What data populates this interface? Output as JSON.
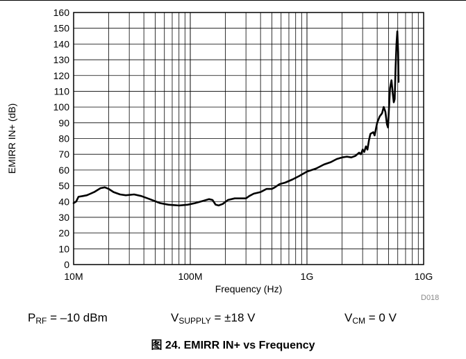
{
  "chart_data": {
    "type": "line",
    "title": "",
    "xlabel": "Frequency (Hz)",
    "ylabel": "EMIRR IN+ (dB)",
    "xscale": "log",
    "xlim": [
      10000000,
      10000000000
    ],
    "ylim": [
      0,
      160
    ],
    "x_ticks": [
      {
        "value": 10000000,
        "label": "10M"
      },
      {
        "value": 100000000,
        "label": "100M"
      },
      {
        "value": 1000000000,
        "label": "1G"
      },
      {
        "value": 10000000000,
        "label": "10G"
      }
    ],
    "y_ticks": [
      0,
      10,
      20,
      30,
      40,
      50,
      60,
      70,
      80,
      90,
      100,
      110,
      120,
      130,
      140,
      150,
      160
    ],
    "grid": true,
    "legend": "none",
    "line_color": "#000000",
    "series": [
      {
        "name": "",
        "points": [
          [
            10000000,
            39
          ],
          [
            10500000,
            40
          ],
          [
            11000000,
            43
          ],
          [
            12000000,
            43.5
          ],
          [
            13000000,
            44
          ],
          [
            15000000,
            46
          ],
          [
            17000000,
            48.5
          ],
          [
            18500000,
            49
          ],
          [
            20000000,
            48
          ],
          [
            22000000,
            46
          ],
          [
            25000000,
            44.5
          ],
          [
            28000000,
            44
          ],
          [
            33000000,
            44.5
          ],
          [
            38000000,
            43.5
          ],
          [
            45000000,
            41.5
          ],
          [
            55000000,
            39
          ],
          [
            65000000,
            38
          ],
          [
            80000000,
            37.5
          ],
          [
            95000000,
            38
          ],
          [
            110000000,
            39
          ],
          [
            130000000,
            40.5
          ],
          [
            145000000,
            41.5
          ],
          [
            155000000,
            41
          ],
          [
            165000000,
            38
          ],
          [
            175000000,
            37.5
          ],
          [
            190000000,
            38.5
          ],
          [
            210000000,
            41
          ],
          [
            240000000,
            42
          ],
          [
            270000000,
            42
          ],
          [
            300000000,
            42
          ],
          [
            320000000,
            43.5
          ],
          [
            350000000,
            45
          ],
          [
            400000000,
            46
          ],
          [
            450000000,
            48
          ],
          [
            500000000,
            48
          ],
          [
            530000000,
            49
          ],
          [
            580000000,
            51
          ],
          [
            650000000,
            52
          ],
          [
            750000000,
            54
          ],
          [
            850000000,
            56
          ],
          [
            1000000000,
            59
          ],
          [
            1200000000,
            61
          ],
          [
            1400000000,
            63.5
          ],
          [
            1600000000,
            65
          ],
          [
            1800000000,
            67
          ],
          [
            2000000000,
            68
          ],
          [
            2200000000,
            68.5
          ],
          [
            2400000000,
            68
          ],
          [
            2600000000,
            69
          ],
          [
            2800000000,
            71
          ],
          [
            2900000000,
            70
          ],
          [
            3000000000,
            73
          ],
          [
            3100000000,
            71.5
          ],
          [
            3200000000,
            75
          ],
          [
            3300000000,
            73
          ],
          [
            3400000000,
            79
          ],
          [
            3500000000,
            83
          ],
          [
            3700000000,
            84
          ],
          [
            3800000000,
            82
          ],
          [
            4000000000,
            90
          ],
          [
            4200000000,
            94
          ],
          [
            4400000000,
            96
          ],
          [
            4550000000,
            100
          ],
          [
            4700000000,
            97
          ],
          [
            4850000000,
            89
          ],
          [
            4950000000,
            87
          ],
          [
            5050000000,
            100
          ],
          [
            5150000000,
            112
          ],
          [
            5300000000,
            117
          ],
          [
            5450000000,
            108
          ],
          [
            5550000000,
            103
          ],
          [
            5650000000,
            105
          ],
          [
            5750000000,
            125
          ],
          [
            5850000000,
            140
          ],
          [
            5950000000,
            148
          ],
          [
            6050000000,
            135
          ],
          [
            6100000000,
            116
          ]
        ]
      }
    ]
  },
  "conditions": {
    "prf_label": "P",
    "prf_sub": "RF",
    "prf_value": " = –10 dBm",
    "vsupply_label": "V",
    "vsupply_sub": "SUPPLY",
    "vsupply_value": " = ±18 V",
    "vcm_label": "V",
    "vcm_sub": "CM",
    "vcm_value": " = 0 V"
  },
  "figure_code": "D018",
  "caption": "图 24. EMIRR IN+ vs Frequency"
}
